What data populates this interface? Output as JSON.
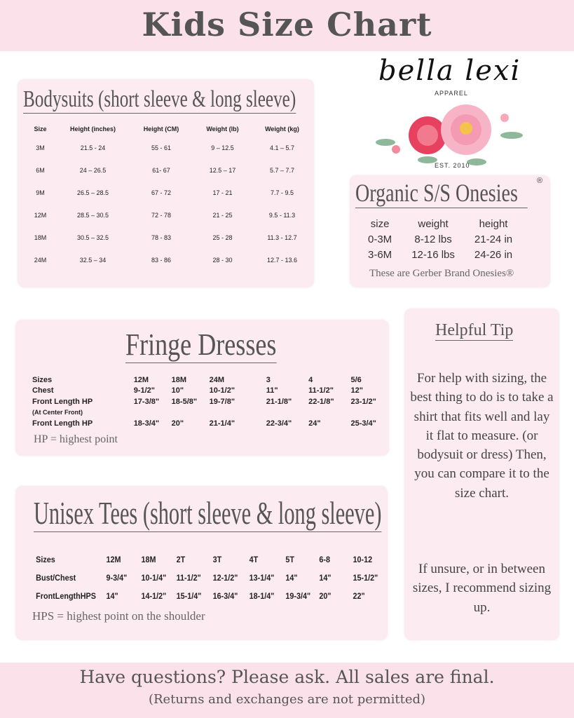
{
  "header": {
    "title": "Kids Size Chart"
  },
  "logo": {
    "name": "bella lexi",
    "sub": "APPAREL",
    "est": "EST. 2010"
  },
  "bodysuits": {
    "title": "Bodysuits (short sleeve & long sleeve)",
    "columns": [
      "Size",
      "Height (inches)",
      "Height (CM)",
      "Weight (lb)",
      "Weight (kg)"
    ],
    "rows": [
      [
        "3M",
        "21.5 - 24",
        "55 - 61",
        "9 – 12.5",
        "4.1 – 5.7"
      ],
      [
        "6M",
        "24 – 26.5",
        "61- 67",
        "12.5 – 17",
        "5.7 – 7.7"
      ],
      [
        "9M",
        "26.5 – 28.5",
        "67 - 72",
        "17 - 21",
        "7.7 - 9.5"
      ],
      [
        "12M",
        "28.5 – 30.5",
        "72 - 78",
        "21 - 25",
        "9.5 - 11.3"
      ],
      [
        "18M",
        "30.5 – 32.5",
        "78 - 83",
        "25 - 28",
        "11.3 - 12.7"
      ],
      [
        "24M",
        "32.5 – 34",
        "83 - 86",
        "28 - 30",
        "12.7 - 13.6"
      ]
    ]
  },
  "organic": {
    "title": "Organic S/S Onesies",
    "reg": "®",
    "columns": [
      "size",
      "weight",
      "height"
    ],
    "rows": [
      [
        "0-3M",
        "8-12 lbs",
        "21-24 in"
      ],
      [
        "3-6M",
        "12-16 lbs",
        "24-26 in"
      ]
    ],
    "note": "These are Gerber Brand Onesies®"
  },
  "fringe": {
    "title": "Fringe Dresses",
    "rows": [
      [
        "Sizes",
        "12M",
        "18M",
        "24M",
        "3",
        "4",
        "5/6"
      ],
      [
        "Chest",
        "9-1/2\"",
        "10\"",
        "10-1/2\"",
        "11\"",
        "11-1/2\"",
        "12\""
      ],
      [
        "Front Length HP",
        "17-3/8\"",
        "18-5/8\"",
        "19-7/8\"",
        "21-1/8\"",
        "22-1/8\"",
        "23-1/2\""
      ],
      [
        "(At Center Front)",
        "",
        "",
        "",
        "",
        "",
        ""
      ],
      [
        "Front Length HP",
        "18-3/4\"",
        "20\"",
        "21-1/4\"",
        "22-3/4\"",
        "24\"",
        "25-3/4\""
      ]
    ],
    "note": "HP = highest point"
  },
  "tees": {
    "title": "Unisex Tees (short sleeve & long sleeve)",
    "rows": [
      [
        "Sizes",
        "12M",
        "18M",
        "2T",
        "3T",
        "4T",
        "5T",
        "6-8",
        "10-12"
      ],
      [
        "Bust/Chest",
        "9-3/4\"",
        "10-1/4\"",
        "11-1/2\"",
        "12-1/2\"",
        "13-1/4\"",
        "14\"",
        "14\"",
        "15-1/2\""
      ],
      [
        "FrontLengthHPS",
        "14\"",
        "14-1/2\"",
        "15-1/4\"",
        "16-3/4\"",
        "18-1/4\"",
        "19-3/4\"",
        "20\"",
        "22\""
      ]
    ],
    "note": "HPS = highest point on the shoulder"
  },
  "tip": {
    "title": "Helpful Tip",
    "body": "For help with sizing, the best thing to do is to take a shirt that fits well and lay it flat to measure. (or bodysuit or dress) Then, you can compare it to the size chart.",
    "body2": "If unsure, or in between sizes, I recommend sizing up."
  },
  "footer": {
    "line1": "Have questions? Please ask. All sales are final.",
    "line2": "(Returns and exchanges are not permitted)"
  },
  "colors": {
    "band": "#fbe2ea",
    "card": "#fcebf1",
    "text": "#555555"
  }
}
